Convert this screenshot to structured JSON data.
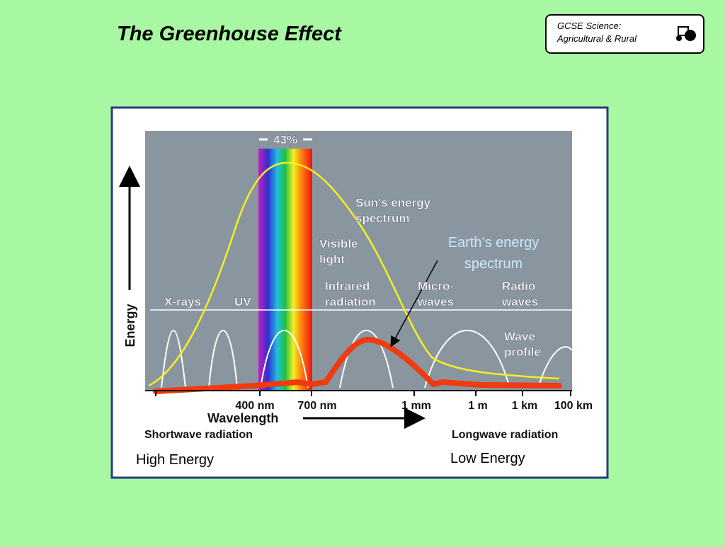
{
  "header": {
    "title": "The Greenhouse Effect",
    "badge": [
      "GCSE Science:",
      "Agricultural & Rural"
    ]
  },
  "diagram": {
    "y_axis_label": "Energy",
    "band_label": "43%",
    "sun": [
      "Sun's energy",
      "spectrum"
    ],
    "visible": [
      "Visible",
      "light"
    ],
    "earth": [
      "Earth’s energy",
      "spectrum"
    ],
    "regions": [
      "X-rays",
      "UV"
    ],
    "infrared": [
      "Infrared",
      "radiation"
    ],
    "micro": [
      "Micro-",
      "waves"
    ],
    "radio": [
      "Radio",
      "waves"
    ],
    "wave": [
      "Wave",
      "profile"
    ],
    "x_ticks": [
      "400 nm",
      "700 nm",
      "1 mm",
      "1 m",
      "1 km",
      "100 km"
    ],
    "x_axis_label": "Wavelength",
    "shortwave": "Shortwave radiation",
    "longwave": "Longwave radiation",
    "high": "High Energy",
    "low": "Low Energy"
  }
}
